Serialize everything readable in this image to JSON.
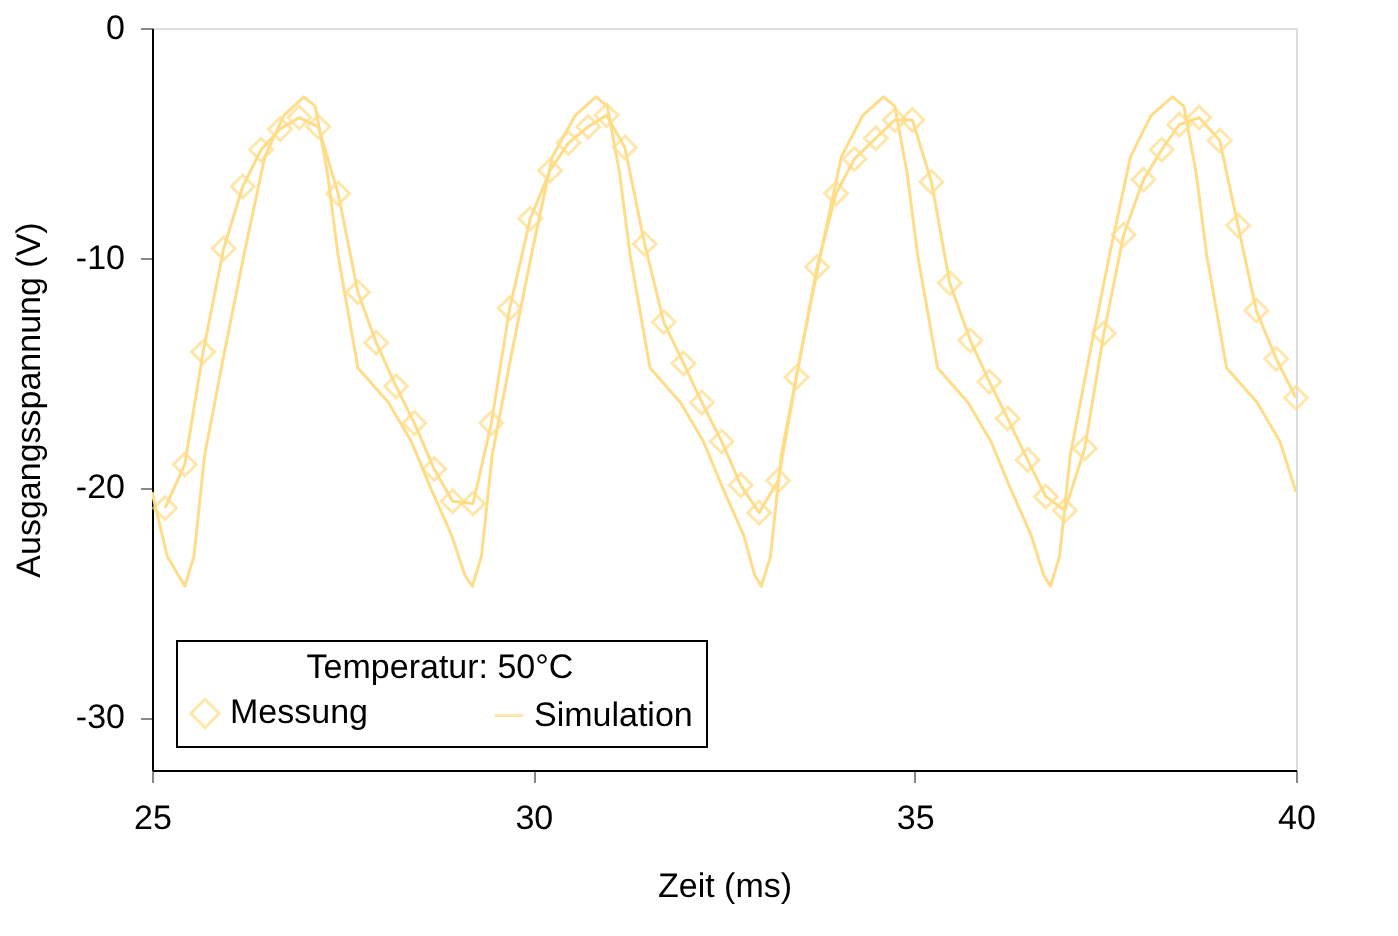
{
  "chart_data": {
    "type": "line",
    "xlabel": "Zeit (ms)",
    "ylabel": "Ausgangsspannung (V)",
    "legend_title": "Temperatur: 50°C",
    "legend": "bottom left",
    "grid": false,
    "xlim": [
      25,
      40
    ],
    "xticks": [
      25,
      30,
      35,
      40
    ],
    "ylim": [
      -32.3,
      0
    ],
    "yticks": [
      0,
      -10,
      -20,
      -30
    ],
    "series": [
      {
        "name": "Messung",
        "color": "#ffdd88",
        "marker": "diamond",
        "x": [
          25.17,
          25.43,
          25.67,
          25.94,
          26.19,
          26.43,
          26.68,
          26.93,
          27.18,
          27.44,
          27.7,
          27.94,
          28.2,
          28.44,
          28.7,
          28.94,
          29.21,
          29.45,
          29.69,
          29.96,
          30.22,
          30.46,
          30.72,
          30.96,
          31.2,
          31.46,
          31.71,
          31.97,
          32.21,
          32.47,
          32.72,
          32.96,
          33.21,
          33.45,
          33.72,
          33.97,
          34.21,
          34.49,
          34.74,
          34.97,
          35.22,
          35.46,
          35.73,
          35.98,
          36.22,
          36.48,
          36.72,
          36.97,
          37.23,
          37.48,
          37.74,
          38.0,
          38.24,
          38.47,
          38.73,
          39.0,
          39.24,
          39.48,
          39.74,
          40.0
        ],
        "values": [
          -20.9,
          -19.0,
          -14.1,
          -9.6,
          -6.9,
          -5.3,
          -4.4,
          -3.9,
          -4.3,
          -7.2,
          -11.5,
          -13.7,
          -15.6,
          -17.2,
          -19.2,
          -20.6,
          -20.7,
          -17.2,
          -12.2,
          -8.3,
          -6.2,
          -5.0,
          -4.3,
          -3.8,
          -5.2,
          -9.4,
          -12.8,
          -14.6,
          -16.3,
          -18.0,
          -19.9,
          -21.1,
          -19.7,
          -15.2,
          -10.4,
          -7.2,
          -5.7,
          -4.8,
          -4.0,
          -4.0,
          -6.7,
          -11.1,
          -13.6,
          -15.4,
          -17.0,
          -18.8,
          -20.4,
          -21.0,
          -18.3,
          -13.3,
          -9.0,
          -6.6,
          -5.3,
          -4.2,
          -3.9,
          -4.9,
          -8.6,
          -12.3,
          -14.4,
          -16.1
        ]
      },
      {
        "name": "Simulation",
        "color": "#ffdd88",
        "marker": "none",
        "x": [
          25.0,
          25.2,
          25.43,
          25.55,
          25.69,
          25.95,
          26.21,
          26.48,
          26.73,
          26.99,
          27.14,
          27.3,
          27.44,
          27.7,
          28.1,
          28.4,
          28.65,
          28.93,
          29.1,
          29.2,
          29.32,
          29.46,
          29.72,
          29.98,
          30.25,
          30.55,
          30.82,
          30.97,
          31.13,
          31.27,
          31.53,
          31.93,
          32.23,
          32.48,
          32.76,
          32.9,
          32.99,
          33.11,
          33.25,
          33.51,
          33.77,
          34.04,
          34.32,
          34.59,
          34.74,
          34.9,
          35.04,
          35.3,
          35.7,
          36.0,
          36.25,
          36.53,
          36.69,
          36.78,
          36.9,
          37.04,
          37.3,
          37.56,
          37.83,
          38.1,
          38.38,
          38.53,
          38.69,
          38.83,
          39.09,
          39.49,
          39.79,
          40.0
        ],
        "values": [
          -20.2,
          -23.0,
          -24.3,
          -23.0,
          -18.6,
          -14.1,
          -9.8,
          -5.6,
          -3.8,
          -3.0,
          -3.4,
          -6.3,
          -9.9,
          -14.8,
          -16.3,
          -18.0,
          -20.0,
          -22.1,
          -23.8,
          -24.3,
          -23.0,
          -18.6,
          -14.1,
          -9.8,
          -5.6,
          -3.8,
          -3.0,
          -3.4,
          -6.3,
          -9.9,
          -14.8,
          -16.3,
          -18.0,
          -20.0,
          -22.1,
          -23.8,
          -24.3,
          -23.0,
          -18.6,
          -14.1,
          -9.8,
          -5.6,
          -3.8,
          -3.0,
          -3.4,
          -6.3,
          -9.9,
          -14.8,
          -16.3,
          -18.0,
          -20.0,
          -22.1,
          -23.8,
          -24.3,
          -23.0,
          -18.6,
          -14.1,
          -9.8,
          -5.6,
          -3.8,
          -3.0,
          -3.4,
          -6.3,
          -9.9,
          -14.8,
          -16.3,
          -18.0,
          -20.2
        ]
      }
    ]
  }
}
